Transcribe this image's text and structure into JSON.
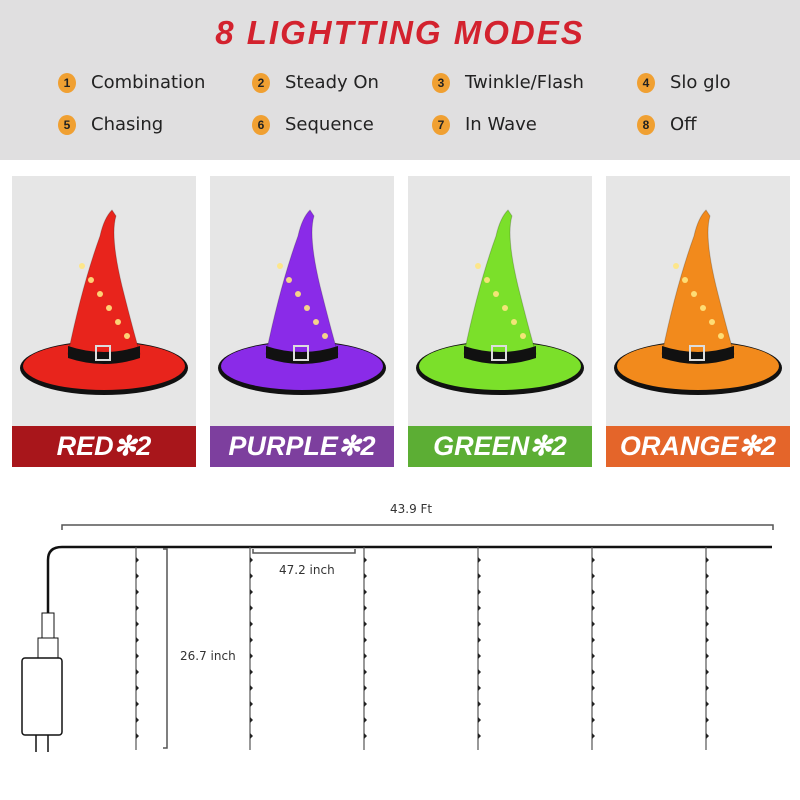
{
  "header": {
    "title": "8 LIGHTTING MODES"
  },
  "modes": [
    {
      "num": "1",
      "label": "Combination"
    },
    {
      "num": "2",
      "label": "Steady On"
    },
    {
      "num": "3",
      "label": "Twinkle/Flash"
    },
    {
      "num": "4",
      "label": "Slo glo"
    },
    {
      "num": "5",
      "label": "Chasing"
    },
    {
      "num": "6",
      "label": "Sequence"
    },
    {
      "num": "7",
      "label": "In Wave"
    },
    {
      "num": "8",
      "label": "Off"
    }
  ],
  "hats": [
    {
      "label": "RED✻2",
      "hat_color": "#e8241c",
      "label_color": "#a8161b"
    },
    {
      "label": "PURPLE✻2",
      "hat_color": "#8a2be8",
      "label_color": "#7d3f9e"
    },
    {
      "label": "GREEN✻2",
      "hat_color": "#7be02a",
      "label_color": "#5cae34"
    },
    {
      "label": "ORANGE✻2",
      "hat_color": "#f28a1c",
      "label_color": "#e4652a"
    }
  ],
  "dimensions": {
    "total_length": "43.9 Ft",
    "spacing": "47.2 inch",
    "drop_length": "26.7 inch"
  }
}
